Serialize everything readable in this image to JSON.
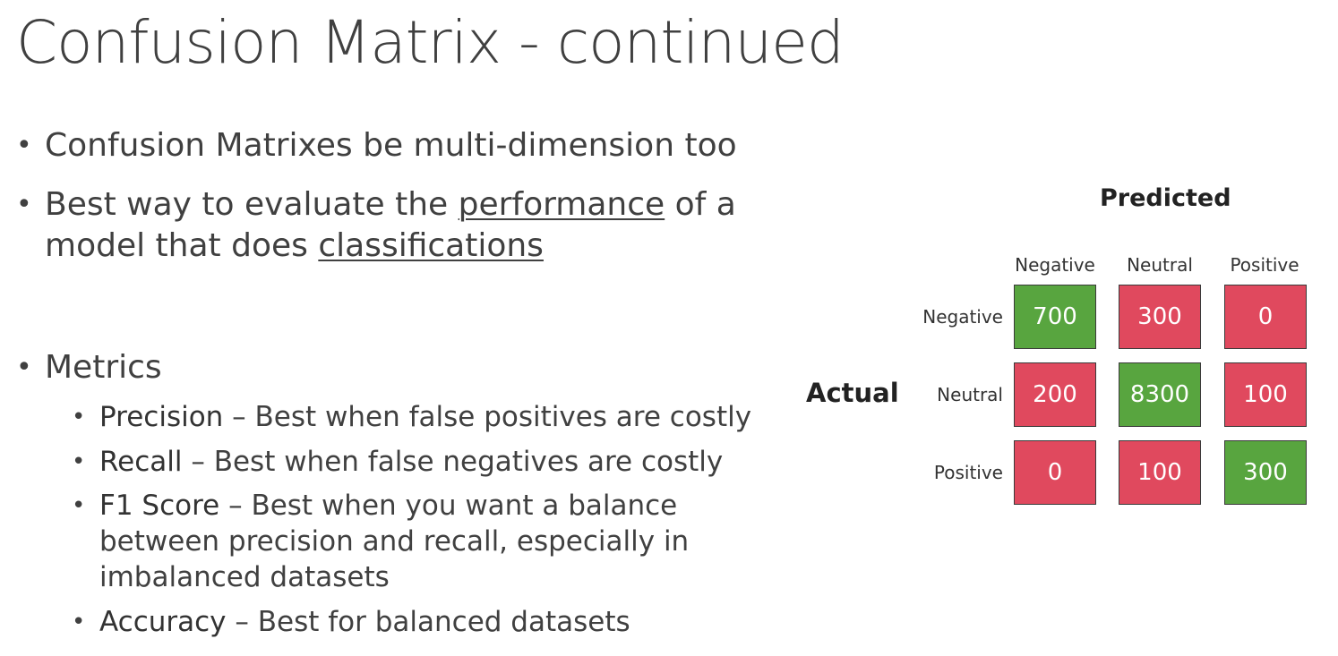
{
  "title": "Confusion Matrix - continued",
  "bullets": {
    "b1": "Confusion Matrixes be multi-dimension too",
    "b2_pre": "Best way to evaluate the ",
    "b2_u1": "performance",
    "b2_mid": " of a",
    "b2_line2_pre": "model that does ",
    "b2_u2": "classifications",
    "metrics": "Metrics",
    "precision_term": "Precision",
    "precision_desc": " – Best when false positives are costly",
    "recall_term": "Recall",
    "recall_desc": " – Best when false negatives are costly",
    "f1_term": "F1 Score",
    "f1_desc_1": " – Best when you want a balance",
    "f1_desc_2": "between precision and recall, especially in",
    "f1_desc_3": "imbalanced datasets",
    "accuracy_term": "Accuracy",
    "accuracy_desc": " – Best for balanced datasets"
  },
  "matrix": {
    "predicted_label": "Predicted",
    "actual_label": "Actual",
    "columns": [
      "Negative",
      "Neutral",
      "Positive"
    ],
    "rows": [
      "Negative",
      "Neutral",
      "Positive"
    ],
    "values": [
      [
        "700",
        "300",
        "0"
      ],
      [
        "200",
        "8300",
        "100"
      ],
      [
        "0",
        "100",
        "300"
      ]
    ],
    "correct_color": "#58a53f",
    "incorrect_color": "#e0495e"
  }
}
